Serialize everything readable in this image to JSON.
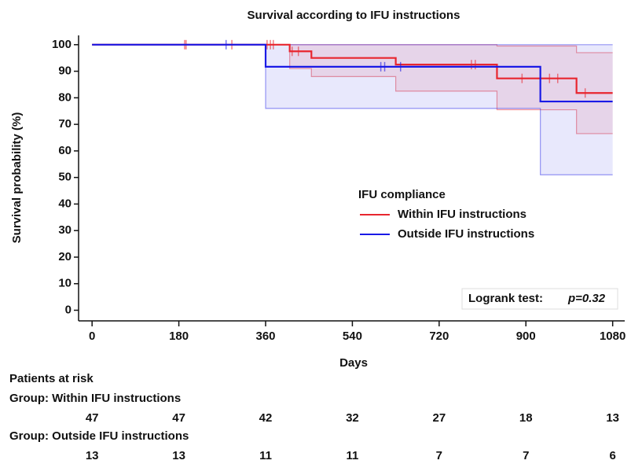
{
  "chart_data": {
    "type": "kaplan-meier",
    "title": "Survival according to IFU instructions",
    "x_label": "Days",
    "y_label": "Survival probability (%)",
    "xlim": [
      -28,
      1105
    ],
    "ylim": [
      -4,
      103.5
    ],
    "xticks": [
      0,
      180,
      360,
      540,
      720,
      900,
      1080
    ],
    "yticks": [
      0,
      10,
      20,
      30,
      40,
      50,
      60,
      70,
      80,
      90,
      100
    ],
    "legend_title": "IFU compliance",
    "series": [
      {
        "name": "Within IFU instructions",
        "color": "#e8262f",
        "x": [
          0,
          410,
          455,
          630,
          840,
          1005,
          1080
        ],
        "values": [
          100,
          97.5,
          95,
          92.5,
          87.3,
          81.8,
          81.8
        ],
        "ci_upper": {
          "x": [
            0,
            840,
            1005,
            1080
          ],
          "values": [
            100,
            99.5,
            97,
            97
          ]
        },
        "ci_lower": {
          "x": [
            0,
            410,
            455,
            630,
            840,
            1005,
            1080
          ],
          "values": [
            100,
            91,
            88,
            82.5,
            75.5,
            66.5,
            66.5
          ]
        },
        "censored": [
          192,
          195,
          290,
          363,
          370,
          376,
          415,
          428,
          787,
          795,
          892,
          949,
          966,
          1023
        ]
      },
      {
        "name": "Outside IFU instructions",
        "color": "#1a1ae6",
        "x": [
          0,
          360,
          930,
          1080
        ],
        "values": [
          100,
          91.7,
          78.6,
          78.6
        ],
        "ci_upper": {
          "x": [
            0,
            1080
          ],
          "values": [
            100,
            100
          ]
        },
        "ci_lower": {
          "x": [
            0,
            360,
            930,
            1080
          ],
          "values": [
            100,
            76,
            51,
            51
          ]
        },
        "censored": [
          278,
          599,
          607,
          640
        ]
      }
    ],
    "annotation": {
      "text": "Logrank test:",
      "p": "p=0.32"
    },
    "risk_table": {
      "title": "Patients at risk",
      "groups": [
        {
          "label": "Group: Within IFU instructions",
          "counts": [
            47,
            47,
            42,
            32,
            27,
            18,
            13
          ]
        },
        {
          "label": "Group: Outside IFU instructions",
          "counts": [
            13,
            13,
            11,
            11,
            7,
            7,
            6
          ]
        }
      ]
    }
  }
}
